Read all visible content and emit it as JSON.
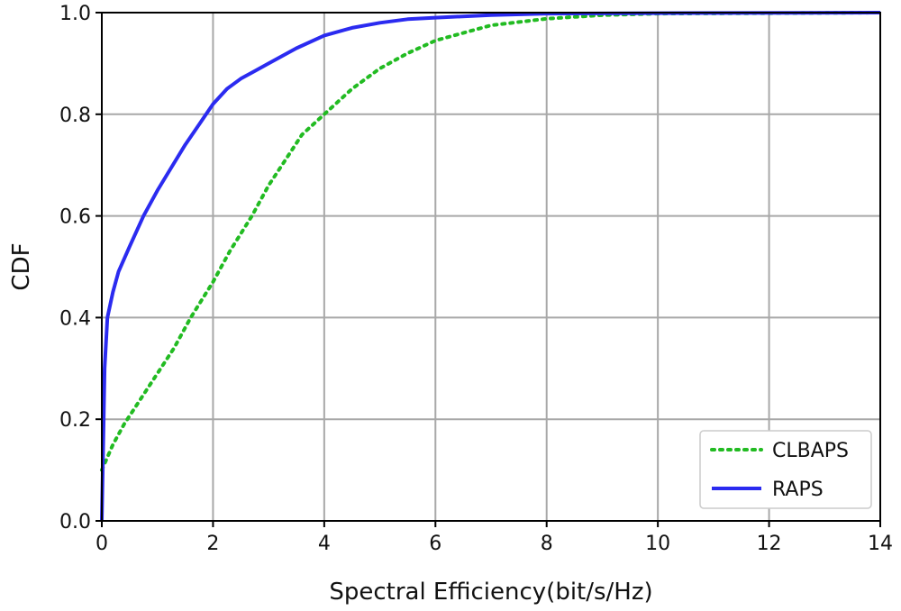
{
  "chart_data": {
    "type": "line",
    "title": "",
    "xlabel": "Spectral Efficiency(bit/s/Hz)",
    "ylabel": "CDF",
    "xlim": [
      0,
      14
    ],
    "ylim": [
      0,
      1
    ],
    "xticks": [
      0,
      2,
      4,
      6,
      8,
      10,
      12,
      14
    ],
    "xtick_labels": [
      "0",
      "2",
      "4",
      "6",
      "8",
      "10",
      "12",
      "14"
    ],
    "yticks": [
      0,
      0.2,
      0.4,
      0.6,
      0.8,
      1.0
    ],
    "ytick_labels": [
      "0.0",
      "0.2",
      "0.4",
      "0.6",
      "0.8",
      "1.0"
    ],
    "grid": true,
    "legend_position": "bottom-right",
    "series": [
      {
        "name": "CLBAPS",
        "style": "dotted",
        "color": "#22bb22",
        "x": [
          0,
          0.2,
          0.4,
          0.7,
          1.0,
          1.3,
          1.6,
          2.0,
          2.3,
          2.7,
          3.0,
          3.3,
          3.6,
          4.0,
          4.5,
          5.0,
          5.5,
          6.0,
          6.5,
          7.0,
          8.0,
          9.0,
          10.0,
          12.0,
          14.0
        ],
        "y": [
          0.1,
          0.15,
          0.19,
          0.24,
          0.29,
          0.34,
          0.4,
          0.47,
          0.53,
          0.6,
          0.66,
          0.71,
          0.76,
          0.8,
          0.85,
          0.89,
          0.92,
          0.945,
          0.96,
          0.975,
          0.988,
          0.995,
          0.998,
          0.999,
          1.0
        ]
      },
      {
        "name": "RAPS",
        "style": "solid",
        "color": "#2b2bf0",
        "x": [
          0,
          0.05,
          0.1,
          0.2,
          0.3,
          0.5,
          0.75,
          1.0,
          1.25,
          1.5,
          1.75,
          2.0,
          2.25,
          2.5,
          2.75,
          3.0,
          3.5,
          4.0,
          4.5,
          5.0,
          5.5,
          6.0,
          7.0,
          8.0,
          10.0,
          14.0
        ],
        "y": [
          0,
          0.3,
          0.4,
          0.45,
          0.49,
          0.54,
          0.6,
          0.65,
          0.695,
          0.74,
          0.78,
          0.82,
          0.85,
          0.87,
          0.885,
          0.9,
          0.93,
          0.955,
          0.97,
          0.98,
          0.987,
          0.99,
          0.995,
          0.998,
          0.999,
          1.0
        ]
      }
    ]
  },
  "colors": {
    "grid": "#a8a8a8",
    "axes": "#000000",
    "legend_border": "#cccccc"
  }
}
